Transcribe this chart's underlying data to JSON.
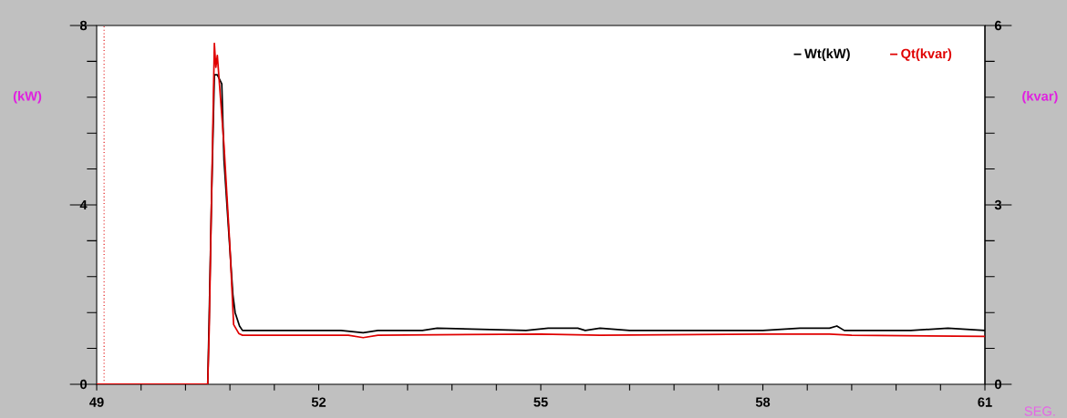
{
  "chart_data": {
    "type": "line",
    "xlabel": "SEG.",
    "ylabel": "(kW)",
    "y2label": "(kvar)",
    "xlim": [
      49,
      61
    ],
    "xticks": [
      49,
      {
        "value": 49.6,
        "label": null
      },
      {
        "value": 50.2,
        "label": null
      },
      {
        "value": 50.8,
        "label": null
      },
      {
        "value": 51.4,
        "label": null
      },
      52,
      {
        "value": 52.6,
        "label": null
      },
      {
        "value": 53.2,
        "label": null
      },
      {
        "value": 53.8,
        "label": null
      },
      {
        "value": 54.4,
        "label": null
      },
      55,
      {
        "value": 55.6,
        "label": null
      },
      {
        "value": 56.2,
        "label": null
      },
      {
        "value": 56.8,
        "label": null
      },
      {
        "value": 57.4,
        "label": null
      },
      58,
      {
        "value": 58.6,
        "label": null
      },
      {
        "value": 59.2,
        "label": null
      },
      {
        "value": 59.8,
        "label": null
      },
      {
        "value": 60.4,
        "label": null
      },
      61
    ],
    "ylim": [
      0,
      8
    ],
    "yticks": [
      0,
      {
        "value": 0.8,
        "label": null
      },
      {
        "value": 1.6,
        "label": null
      },
      {
        "value": 2.4,
        "label": null
      },
      {
        "value": 3.2,
        "label": null
      },
      4,
      {
        "value": 4.8,
        "label": null
      },
      {
        "value": 5.6,
        "label": null
      },
      {
        "value": 6.4,
        "label": null
      },
      {
        "value": 7.2,
        "label": null
      },
      8
    ],
    "y2lim": [
      0,
      6
    ],
    "y2ticks": [
      0,
      {
        "value": 0.6,
        "label": null
      },
      {
        "value": 1.2,
        "label": null
      },
      {
        "value": 1.8,
        "label": null
      },
      {
        "value": 2.4,
        "label": null
      },
      3,
      {
        "value": 3.6,
        "label": null
      },
      {
        "value": 4.2,
        "label": null
      },
      {
        "value": 4.8,
        "label": null
      },
      {
        "value": 5.4,
        "label": null
      },
      6
    ],
    "legend": "top right",
    "ref_lines": [
      {
        "axis": "x",
        "value": 49.1,
        "color": "#e00000",
        "line_style": "dotted"
      }
    ],
    "series": [
      {
        "name": "Wt(kW)",
        "color": "#000000",
        "x": [
          49,
          50.5,
          50.52,
          50.55,
          50.59,
          50.63,
          50.66,
          50.69,
          50.72,
          50.78,
          50.84,
          50.87,
          50.93,
          50.97,
          51.5,
          52.3,
          52.6,
          52.8,
          53.4,
          53.6,
          54.8,
          55.1,
          55.5,
          55.6,
          55.8,
          56.2,
          57.3,
          58.0,
          58.5,
          58.9,
          59.0,
          59.1,
          60.0,
          60.5,
          61
        ],
        "values": [
          0,
          0,
          1.5,
          4.0,
          6.9,
          6.9,
          6.8,
          6.7,
          5.0,
          3.5,
          2.0,
          1.6,
          1.3,
          1.2,
          1.2,
          1.2,
          1.15,
          1.2,
          1.2,
          1.25,
          1.2,
          1.25,
          1.25,
          1.2,
          1.25,
          1.2,
          1.2,
          1.2,
          1.25,
          1.25,
          1.3,
          1.2,
          1.2,
          1.25,
          1.2
        ]
      },
      {
        "name": "Qt(kvar)",
        "color": "#e00000",
        "axis": "y2",
        "x": [
          49,
          50.5,
          50.52,
          50.55,
          50.59,
          50.61,
          50.63,
          50.66,
          50.72,
          50.8,
          50.85,
          50.92,
          50.97,
          52.0,
          52.4,
          52.6,
          52.8,
          55.0,
          55.8,
          58.0,
          58.9,
          59.2,
          61
        ],
        "values": [
          0,
          0,
          0.9,
          3.0,
          5.7,
          5.3,
          5.5,
          5.0,
          4.0,
          2.3,
          1.0,
          0.85,
          0.82,
          0.82,
          0.82,
          0.78,
          0.82,
          0.84,
          0.82,
          0.84,
          0.84,
          0.82,
          0.8
        ]
      }
    ]
  }
}
